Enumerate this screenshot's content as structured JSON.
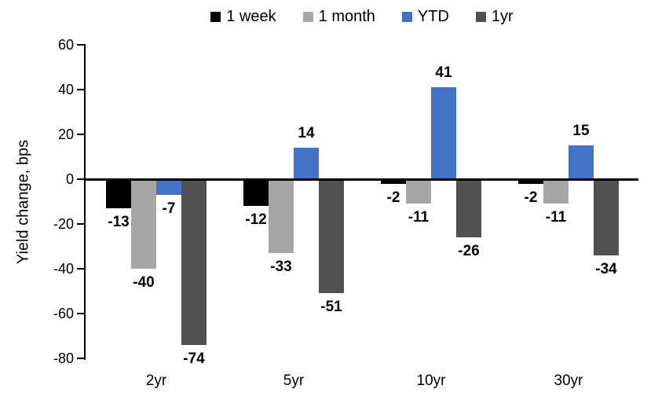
{
  "chart_data": {
    "type": "bar",
    "title": "",
    "ylabel": "Yield change, bps",
    "xlabel": "",
    "categories": [
      "2yr",
      "5yr",
      "10yr",
      "30yr"
    ],
    "series": [
      {
        "name": "1 week",
        "color": "#000000",
        "values": [
          -13,
          -12,
          -2,
          -2
        ]
      },
      {
        "name": "1 month",
        "color": "#A6A6A6",
        "values": [
          -40,
          -33,
          -11,
          -11
        ]
      },
      {
        "name": "YTD",
        "color": "#4472C4",
        "values": [
          -7,
          14,
          41,
          15
        ]
      },
      {
        "name": "1yr",
        "color": "#515151",
        "values": [
          -74,
          -51,
          -26,
          -34
        ]
      }
    ],
    "yticks": [
      60,
      40,
      20,
      0,
      -20,
      -40,
      -60,
      -80
    ],
    "ylim": [
      -80,
      60
    ],
    "grid": false,
    "legend_position": "top",
    "axis_color": "#000000",
    "data_labels": true
  }
}
